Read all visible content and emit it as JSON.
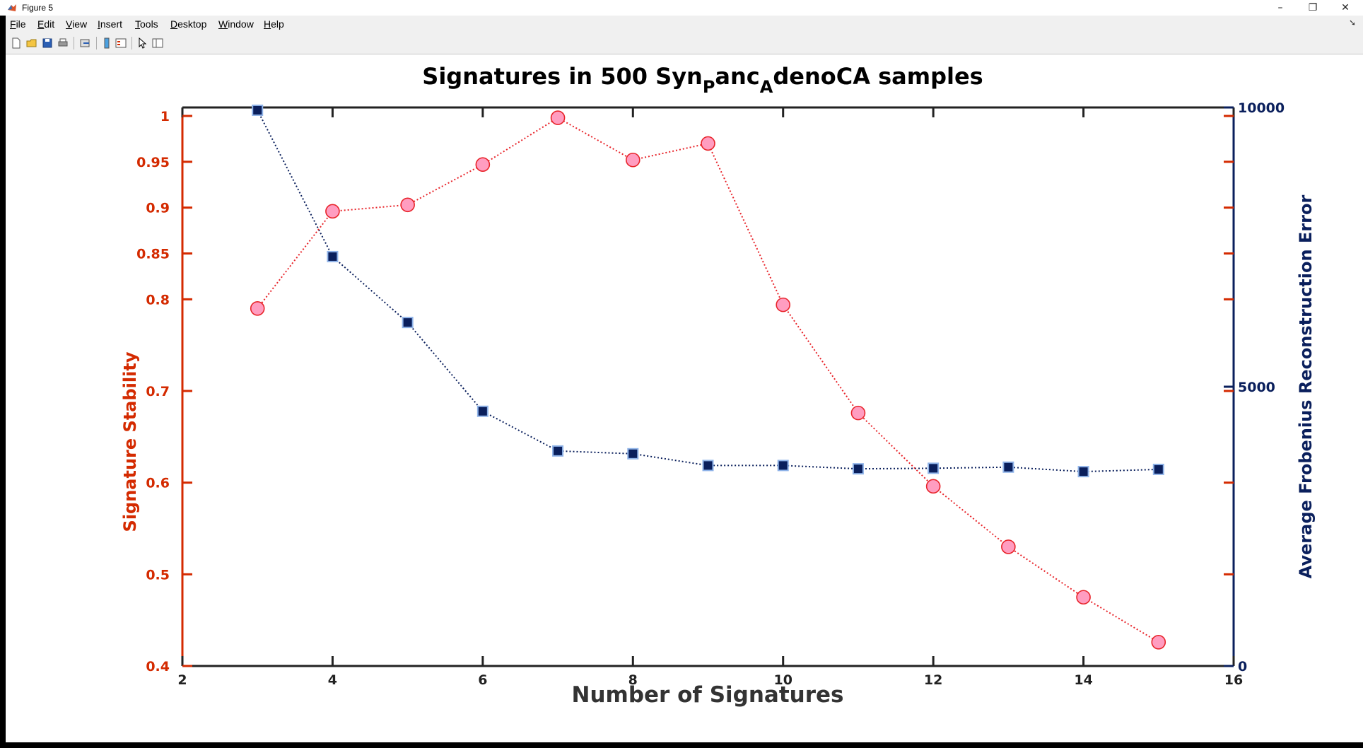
{
  "window": {
    "title": "Figure 5"
  },
  "menu": {
    "items": [
      {
        "label": "File",
        "key": "F",
        "rest": "ile"
      },
      {
        "label": "Edit",
        "key": "E",
        "rest": "dit"
      },
      {
        "label": "View",
        "key": "V",
        "rest": "iew"
      },
      {
        "label": "Insert",
        "key": "I",
        "rest": "nsert"
      },
      {
        "label": "Tools",
        "key": "T",
        "rest": "ools"
      },
      {
        "label": "Desktop",
        "key": "D",
        "rest": "esktop"
      },
      {
        "label": "Window",
        "key": "W",
        "rest": "indow"
      },
      {
        "label": "Help",
        "key": "H",
        "rest": "elp"
      }
    ]
  },
  "toolbar": {
    "icons": [
      "new-figure-icon",
      "open-file-icon",
      "save-icon",
      "print-icon",
      "link-plot-icon",
      "colorbar-icon",
      "legend-icon",
      "pointer-icon",
      "property-inspector-icon"
    ]
  },
  "colors": {
    "left_axis": "#d42a00",
    "right_axis": "#0a1f5c",
    "stability_marker": "#ff9dc0",
    "stability_edge": "#e8242a",
    "error_marker": "#0a1f5c",
    "error_edge": "#8fb3e8"
  },
  "chart_data": {
    "type": "line",
    "title_main": "Signatures in 500 Syn",
    "title_sub1": "P",
    "title_mid": "anc",
    "title_sub2": "A",
    "title_end": "denoCA samples",
    "xlabel": "Number of Signatures",
    "ylabel_left": "Signature Stability",
    "ylabel_right": "Average Frobenius Reconstruction Error",
    "xlim": [
      2,
      16
    ],
    "xticks": [
      2,
      4,
      6,
      8,
      10,
      12,
      14,
      16
    ],
    "ylim_left": [
      0.4,
      1.0
    ],
    "yticks_left": [
      "0.4",
      "0.5",
      "0.6",
      "0.7",
      "0.8",
      "0.85",
      "0.9",
      "0.95",
      "1"
    ],
    "ylim_right": [
      0,
      10000
    ],
    "yticks_right": [
      "0",
      "5000",
      "10000"
    ],
    "series": [
      {
        "name": "Signature Stability",
        "axis": "left",
        "x": [
          3,
          4,
          5,
          6,
          7,
          8,
          9,
          10,
          11,
          12,
          13,
          14,
          15
        ],
        "values": [
          0.79,
          0.896,
          0.903,
          0.947,
          0.998,
          0.952,
          0.97,
          0.794,
          0.676,
          0.596,
          0.53,
          0.475,
          0.426
        ]
      },
      {
        "name": "Average Frobenius Reconstruction Error",
        "axis": "right",
        "x": [
          3,
          4,
          5,
          6,
          7,
          8,
          9,
          10,
          11,
          12,
          13,
          14,
          15
        ],
        "values": [
          9950,
          7330,
          6150,
          4560,
          3850,
          3800,
          3590,
          3590,
          3530,
          3540,
          3560,
          3480,
          3520
        ]
      }
    ]
  }
}
